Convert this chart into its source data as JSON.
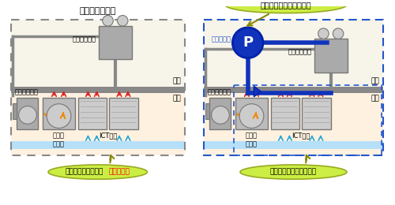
{
  "bg_color": "#ffffff",
  "left_title": "従来の空調装置",
  "left_outdoor_label": "室外",
  "left_indoor_label": "室内",
  "left_outdoor_unit": "室外ユニット",
  "left_indoor_unit": "室内ユニット",
  "left_machine": "圧縮機\n送風機",
  "left_ict": "ICT装置",
  "left_bottom1": "年間を通じて運転：",
  "left_bottom2": "消費電力大",
  "right_top_callout": "夏期は停止、冬期に運転",
  "right_outdoor_label": "室外",
  "right_indoor_label": "室内",
  "right_outdoor_unit": "室外ユニット",
  "right_pump": "冷媒ポンプ",
  "right_indoor_unit": "室内ユニット",
  "right_machine": "圧縮機\n送風機",
  "right_ict": "ICT装置",
  "right_bottom": "夏期に運転、冬期は停止",
  "gray_border": "#888888",
  "blue_border": "#2255cc",
  "pump_blue": "#1133bb",
  "callout_fill": "#ccee44",
  "callout_edge": "#99aa22",
  "orange_arrow": "#ee8800",
  "red_arrow": "#dd2222",
  "cyan_arrow": "#22aadd",
  "outdoor_bg": "#f5f0e0",
  "indoor_bg": "#ffe8cc",
  "floor_color": "#888888",
  "raised_floor_color": "#aaddff",
  "unit_gray": "#aaaaaa",
  "unit_dark": "#777777",
  "fan_gray": "#cccccc"
}
